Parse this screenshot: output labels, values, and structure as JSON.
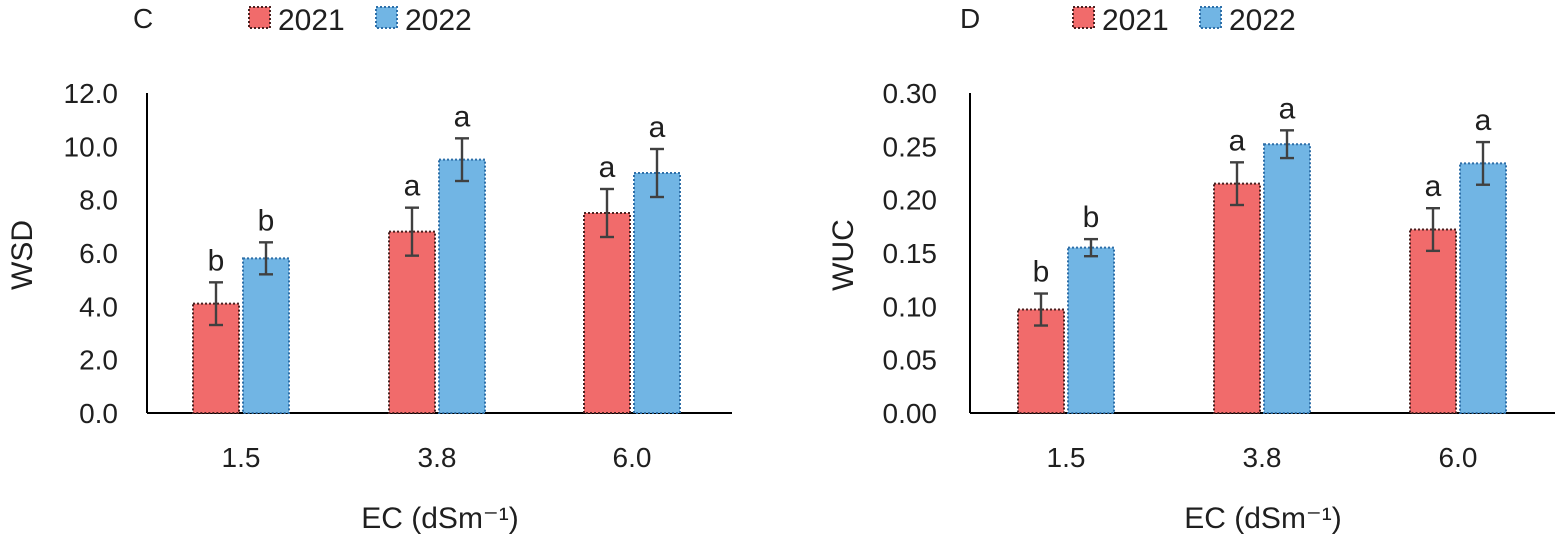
{
  "colors": {
    "s2021": "#f16b6b",
    "s2022": "#71b5e4",
    "s2021_border": "#4a2020",
    "s2022_border": "#2e6fa8"
  },
  "chart_data": [
    {
      "type": "bar",
      "panel": "C",
      "legend": [
        "2021",
        "2022"
      ],
      "categories": [
        "1.5",
        "3.8",
        "6.0"
      ],
      "series": [
        {
          "name": "2021",
          "values": [
            4.1,
            6.8,
            7.5
          ],
          "error": [
            0.8,
            0.9,
            0.9
          ],
          "labels": [
            "b",
            "a",
            "a"
          ]
        },
        {
          "name": "2022",
          "values": [
            5.8,
            9.5,
            9.0
          ],
          "error": [
            0.6,
            0.8,
            0.9
          ],
          "labels": [
            "b",
            "a",
            "a"
          ]
        }
      ],
      "xlabel": "EC (dSm⁻¹)",
      "ylabel": "WSD",
      "ylim": [
        0,
        12
      ],
      "yticks": [
        "0.0",
        "2.0",
        "4.0",
        "6.0",
        "8.0",
        "10.0",
        "12.0"
      ]
    },
    {
      "type": "bar",
      "panel": "D",
      "legend": [
        "2021",
        "2022"
      ],
      "categories": [
        "1.5",
        "3.8",
        "6.0"
      ],
      "series": [
        {
          "name": "2021",
          "values": [
            0.097,
            0.215,
            0.172
          ],
          "error": [
            0.015,
            0.02,
            0.02
          ],
          "labels": [
            "b",
            "a",
            "a"
          ]
        },
        {
          "name": "2022",
          "values": [
            0.155,
            0.252,
            0.234
          ],
          "error": [
            0.008,
            0.013,
            0.02
          ],
          "labels": [
            "b",
            "a",
            "a"
          ]
        }
      ],
      "xlabel": "EC (dSm⁻¹)",
      "ylabel": "WUC",
      "ylim": [
        0,
        0.3
      ],
      "yticks": [
        "0.00",
        "0.05",
        "0.10",
        "0.15",
        "0.20",
        "0.25",
        "0.30"
      ]
    }
  ]
}
